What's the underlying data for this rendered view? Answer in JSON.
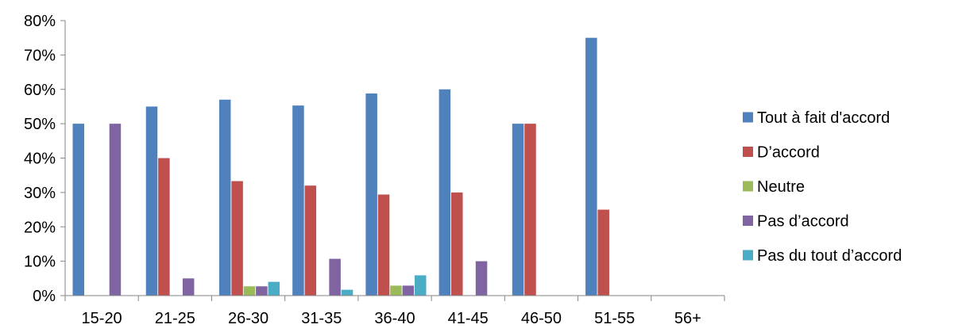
{
  "chart_data": {
    "type": "bar",
    "title": "",
    "xlabel": "",
    "ylabel": "",
    "ylim": [
      0,
      0.8
    ],
    "y_ticks": [
      0,
      0.1,
      0.2,
      0.3,
      0.4,
      0.5,
      0.6,
      0.7,
      0.8
    ],
    "y_tick_labels": [
      "0%",
      "10%",
      "20%",
      "30%",
      "40%",
      "50%",
      "60%",
      "70%",
      "80%"
    ],
    "grid": false,
    "legend_position": "right",
    "categories": [
      "15-20",
      "21-25",
      "26-30",
      "31-35",
      "36-40",
      "41-45",
      "46-50",
      "51-55",
      "56+"
    ],
    "series": [
      {
        "name": "Tout à fait d'accord",
        "color": "#4F81BD",
        "values": [
          0.5,
          0.55,
          0.57,
          0.553,
          0.588,
          0.6,
          0.5,
          0.75,
          0
        ]
      },
      {
        "name": "D’accord",
        "color": "#C0504D",
        "values": [
          0,
          0.4,
          0.333,
          0.32,
          0.294,
          0.3,
          0.5,
          0.25,
          0
        ]
      },
      {
        "name": "Neutre",
        "color": "#9BBB59",
        "values": [
          0,
          0,
          0.027,
          0,
          0.029,
          0,
          0,
          0,
          0
        ]
      },
      {
        "name": "Pas d’accord",
        "color": "#8064A2",
        "values": [
          0.5,
          0.05,
          0.027,
          0.107,
          0.029,
          0.1,
          0,
          0,
          0
        ]
      },
      {
        "name": "Pas du tout d’accord",
        "color": "#4BACC6",
        "values": [
          0,
          0,
          0.04,
          0.017,
          0.059,
          0,
          0,
          0,
          0
        ]
      }
    ]
  }
}
